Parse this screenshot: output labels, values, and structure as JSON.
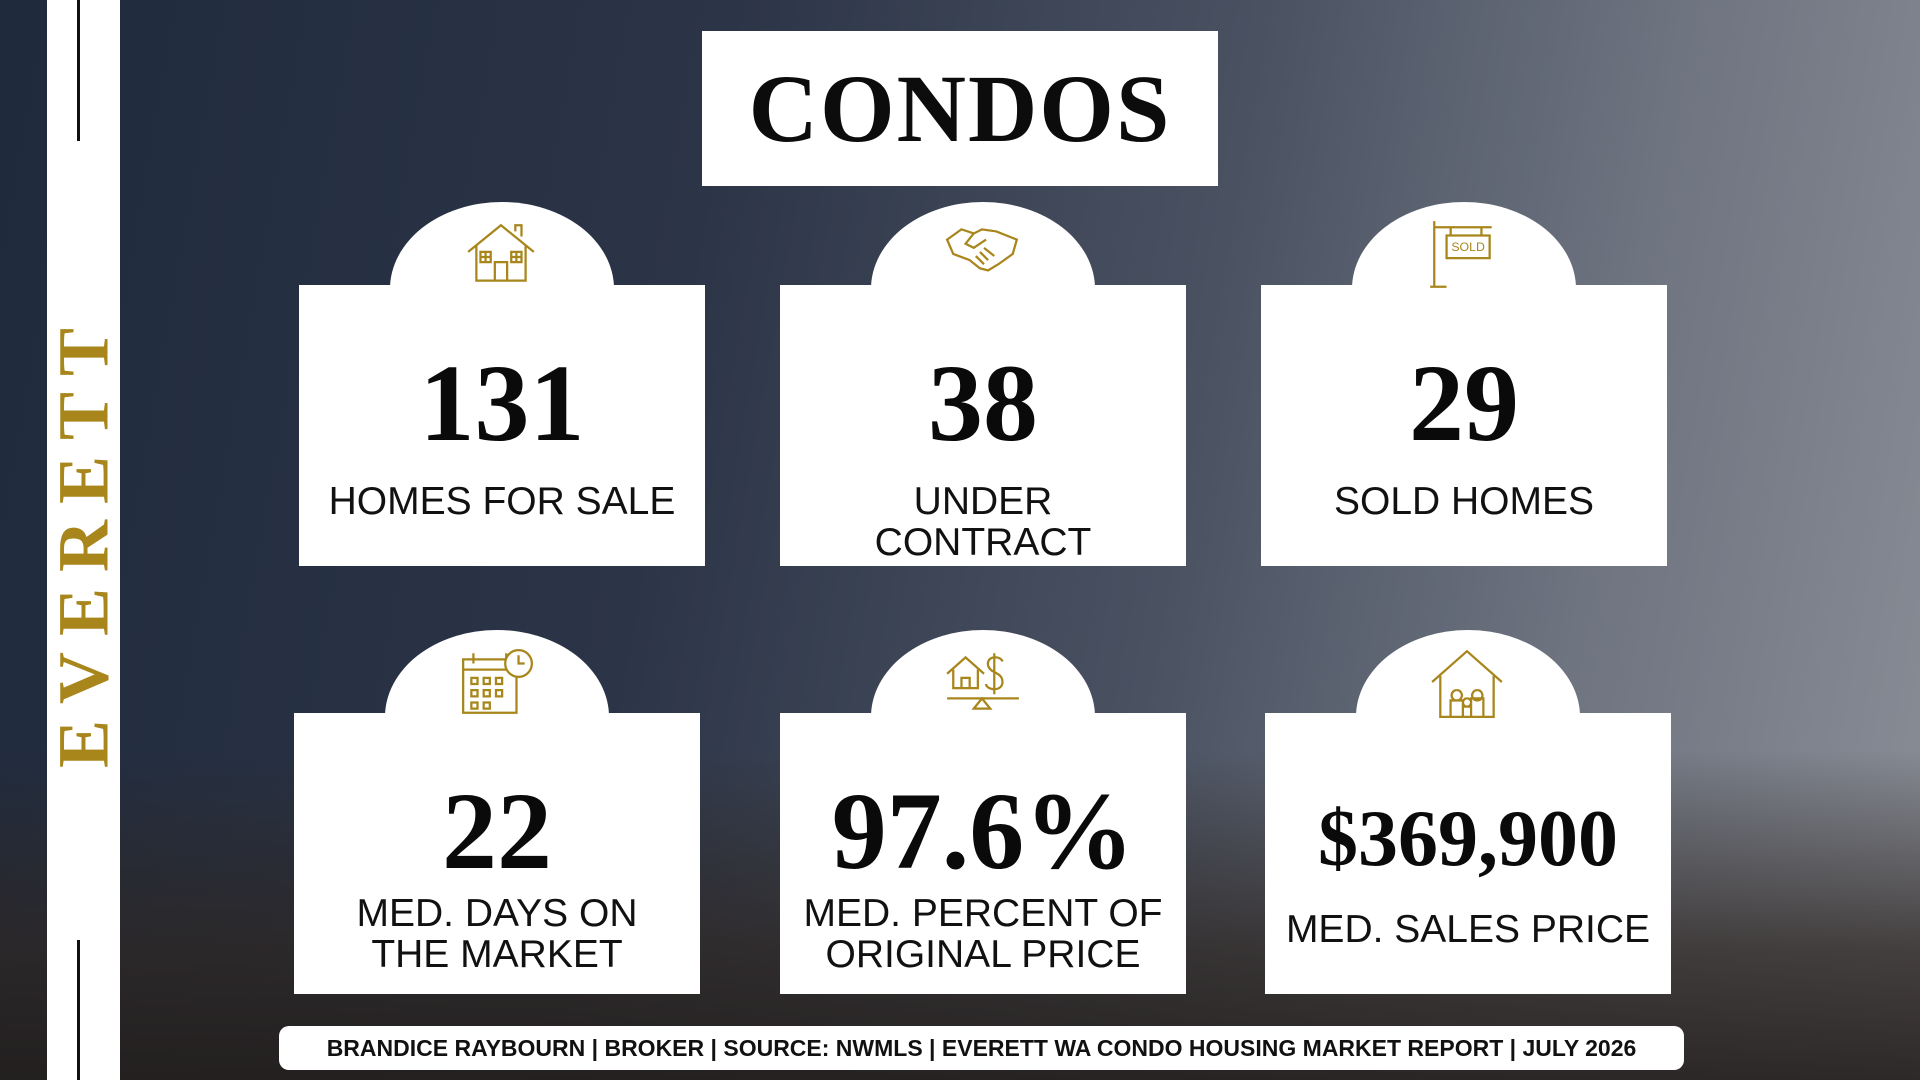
{
  "title": "CONDOS",
  "side_label": "EVERETT",
  "cards": [
    {
      "value": "131",
      "label": "HOMES FOR SALE"
    },
    {
      "value": "38",
      "label": "UNDER CONTRACT"
    },
    {
      "value": "29",
      "label": "SOLD HOMES"
    },
    {
      "value": "22",
      "label": "MED. DAYS ON THE MARKET"
    },
    {
      "value": "97.6%",
      "label": "MED. PERCENT OF ORIGINAL PRICE"
    },
    {
      "value": "$369,900",
      "label": "MED. SALES PRICE"
    }
  ],
  "footer": "BRANDICE RAYBOURN | BROKER | SOURCE: NWMLS | EVERETT WA CONDO HOUSING MARKET REPORT | JULY 2026"
}
